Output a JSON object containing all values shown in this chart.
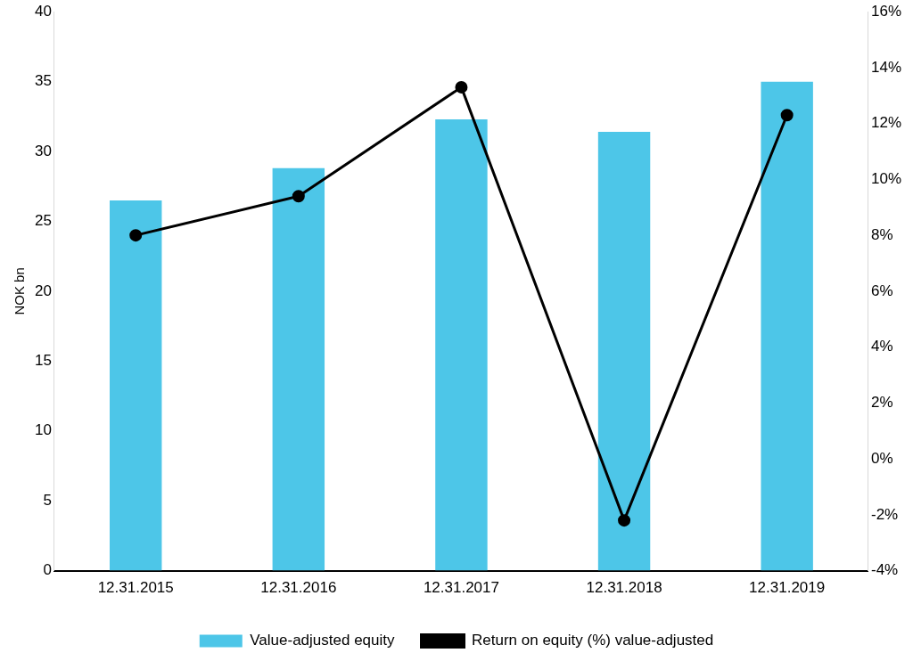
{
  "chart_data": {
    "type": "bar",
    "categories": [
      "12.31.2015",
      "12.31.2016",
      "12.31.2017",
      "12.31.2018",
      "12.31.2019"
    ],
    "ylabel": "NOK bn",
    "ylim": [
      0,
      40
    ],
    "yticks": [
      0,
      5,
      10,
      15,
      20,
      25,
      30,
      35,
      40
    ],
    "y2lim": [
      -4,
      16
    ],
    "y2ticks": [
      {
        "value": -4,
        "label": "-4%"
      },
      {
        "value": -2,
        "label": "-2%"
      },
      {
        "value": 0,
        "label": "0%"
      },
      {
        "value": 2,
        "label": "2%"
      },
      {
        "value": 4,
        "label": "4%"
      },
      {
        "value": 6,
        "label": "6%"
      },
      {
        "value": 8,
        "label": "8%"
      },
      {
        "value": 10,
        "label": "10%"
      },
      {
        "value": 12,
        "label": "12%"
      },
      {
        "value": 14,
        "label": "14%"
      },
      {
        "value": 16,
        "label": "16%"
      }
    ],
    "series": [
      {
        "name": "Value-adjusted equity",
        "color": "#4dc6e8",
        "values": [
          26.5,
          28.8,
          32.3,
          31.4,
          35.0
        ]
      },
      {
        "name": "Return on equity (%) value-adjusted",
        "type": "line",
        "axis": "y2",
        "color": "#000000",
        "values": [
          8.0,
          9.4,
          13.3,
          -2.2,
          12.3
        ]
      }
    ],
    "legend": "bottom",
    "grid": false,
    "marker": "circle",
    "line_style": "solid"
  }
}
